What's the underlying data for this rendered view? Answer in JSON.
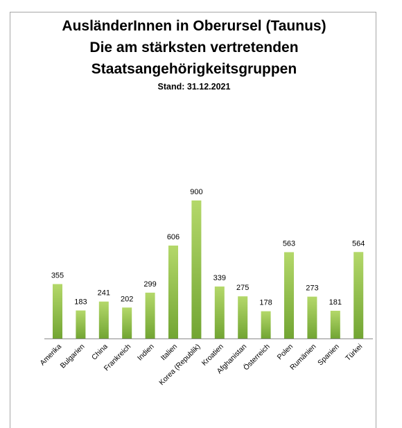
{
  "chart_data": {
    "type": "bar",
    "title_lines": [
      "AusländerInnen in Oberursel (Taunus)",
      "Die am stärksten vertretenden",
      "Staatsangehörigkeitsgruppen"
    ],
    "subtitle": "Stand: 31.12.2021",
    "categories": [
      "Amerika",
      "Bulgarien",
      "China",
      "Frankreich",
      "Indien",
      "Italien",
      "Korea (Republik)",
      "Kroatien",
      "Afghanistan",
      "Österreich",
      "Polen",
      "Rumänien",
      "Spanien",
      "Türkei"
    ],
    "values": [
      355,
      183,
      241,
      202,
      299,
      606,
      900,
      339,
      275,
      178,
      563,
      273,
      181,
      564
    ],
    "ylim": [
      0,
      900
    ],
    "grid": false,
    "legend": "none",
    "colors": {
      "bar_light": "#b4d86a",
      "bar_dark": "#72a533",
      "axis": "#8c8c8c",
      "frame": "#a6a6a6"
    }
  }
}
